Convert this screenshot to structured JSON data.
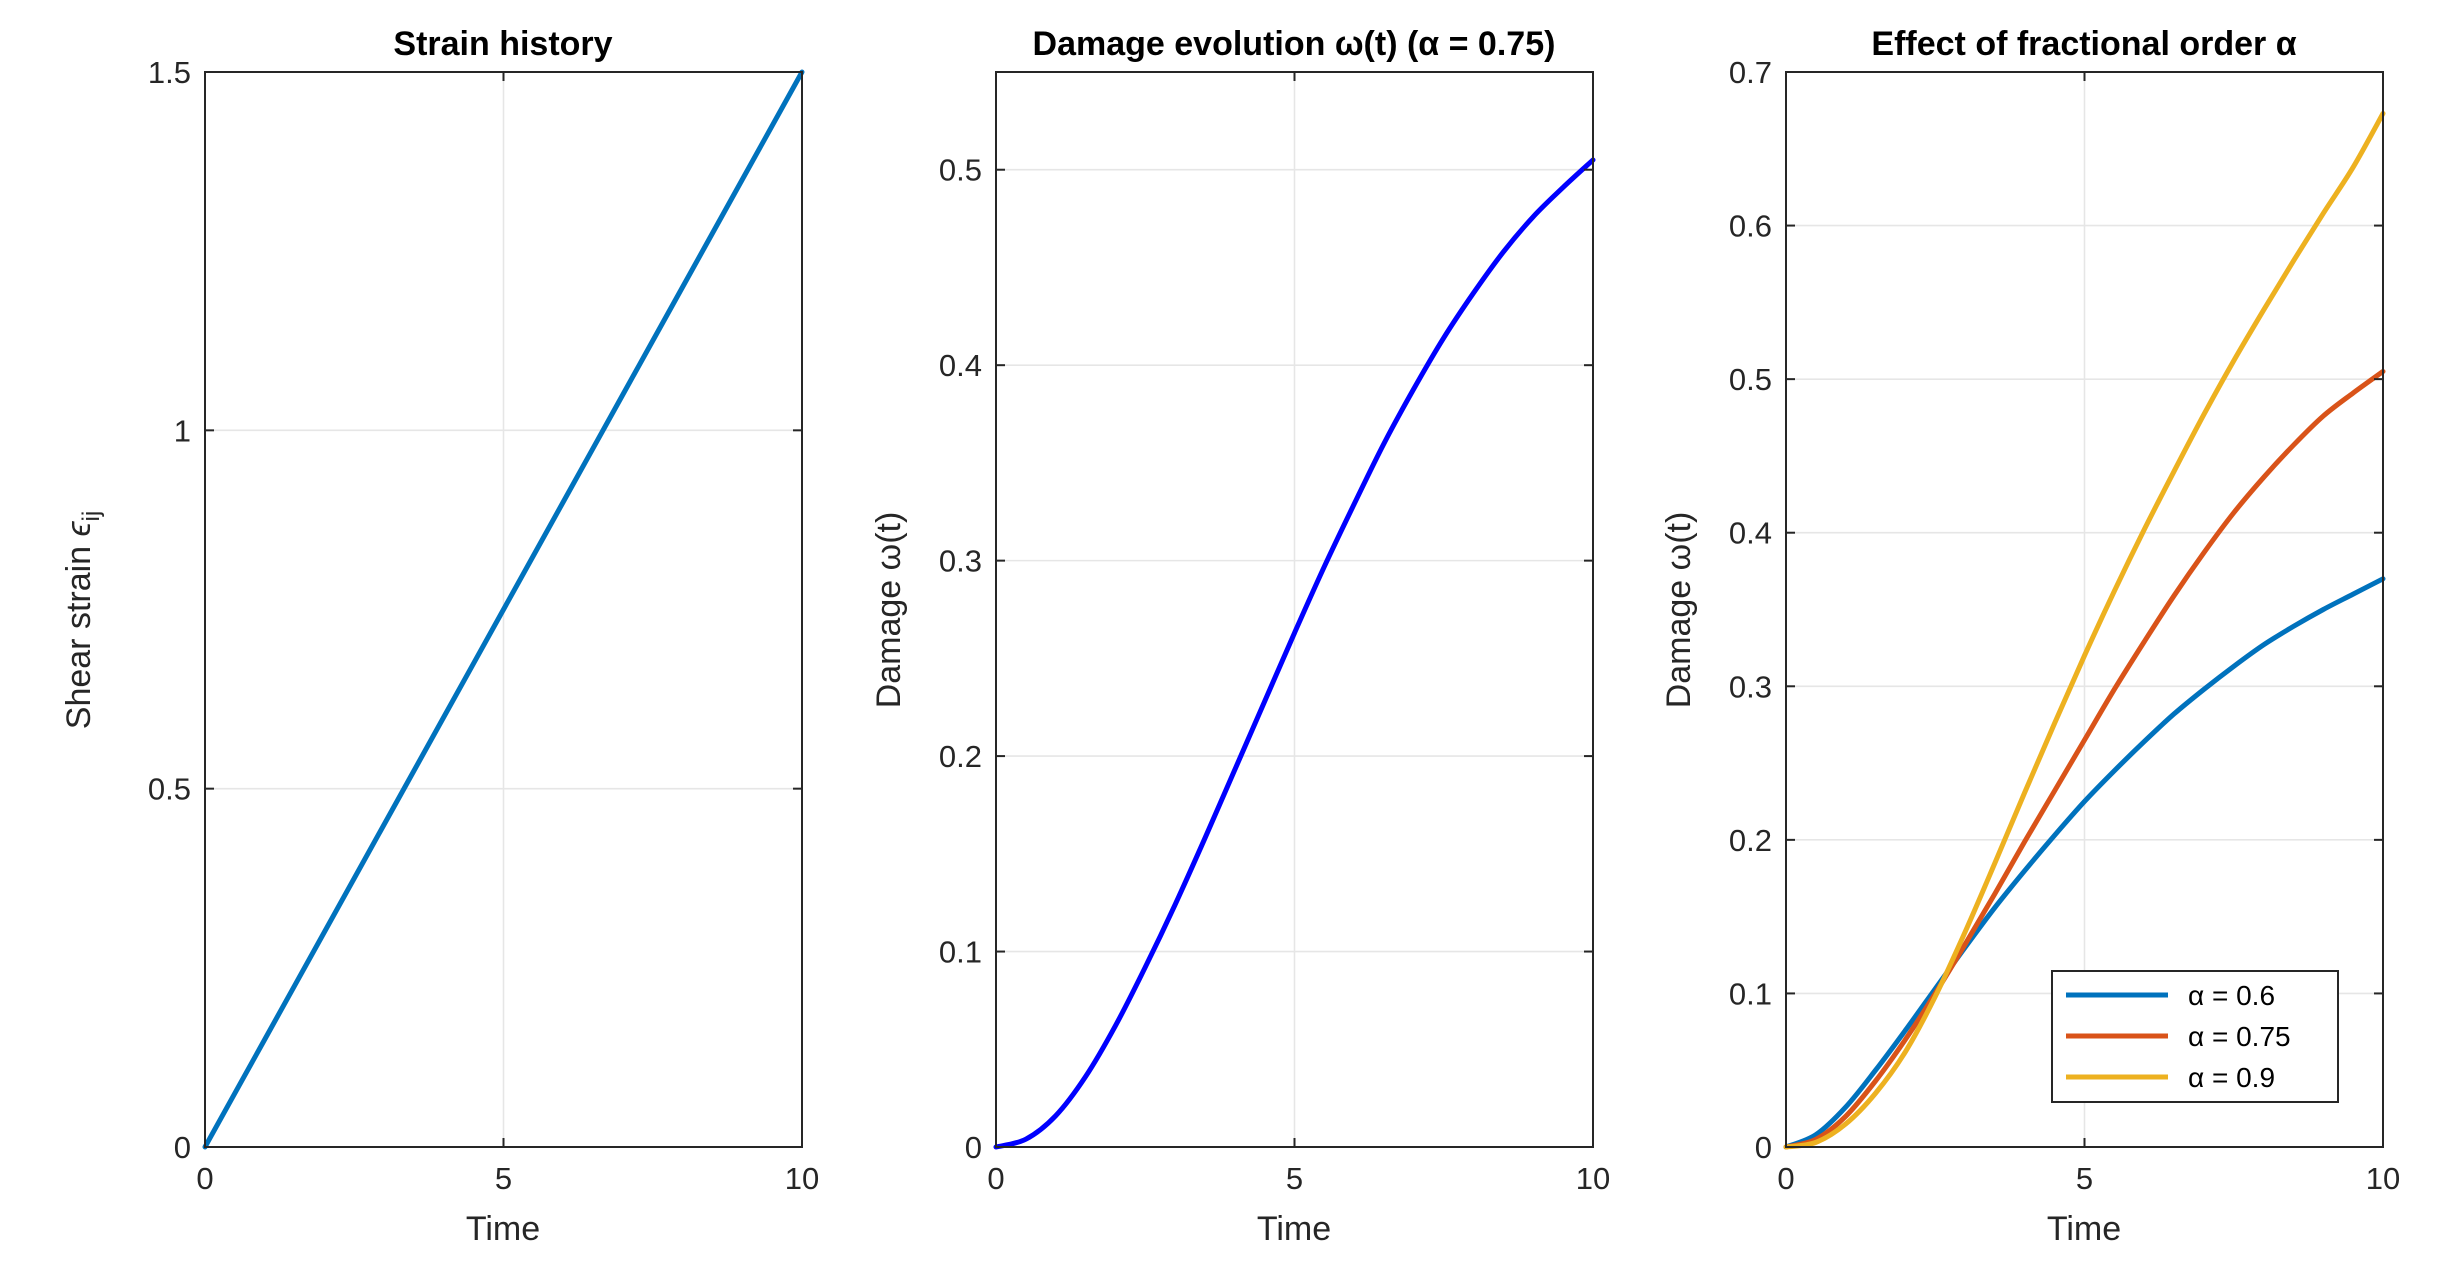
{
  "chart_data": [
    {
      "type": "line",
      "title": "Strain history",
      "xlabel": "Time",
      "ylabel": "Shear strain ϵij",
      "xlim": [
        0,
        10
      ],
      "ylim": [
        0,
        1.5
      ],
      "xticks": [
        0,
        5,
        10
      ],
      "xtick_labels": [
        "0",
        "5",
        "10"
      ],
      "yticks": [
        0,
        0.5,
        1,
        1.5
      ],
      "ytick_labels": [
        "0",
        "0.5",
        "1",
        "1.5"
      ],
      "grid": true,
      "series": [
        {
          "name": "strain",
          "color": "#0072BD",
          "x": [
            0,
            1,
            2,
            3,
            4,
            5,
            6,
            7,
            8,
            9,
            10
          ],
          "y": [
            0,
            0.15,
            0.3,
            0.45,
            0.6,
            0.75,
            0.9,
            1.05,
            1.2,
            1.35,
            1.5
          ]
        }
      ]
    },
    {
      "type": "line",
      "title": "Damage evolution ω(t) (α = 0.75)",
      "xlabel": "Time",
      "ylabel": "Damage ω(t)",
      "xlim": [
        0,
        10
      ],
      "ylim": [
        0,
        0.55
      ],
      "xticks": [
        0,
        5,
        10
      ],
      "xtick_labels": [
        "0",
        "5",
        "10"
      ],
      "yticks": [
        0,
        0.1,
        0.2,
        0.3,
        0.4,
        0.5
      ],
      "ytick_labels": [
        "0",
        "0.1",
        "0.2",
        "0.3",
        "0.4",
        "0.5"
      ],
      "grid": true,
      "series": [
        {
          "name": "α = 0.75",
          "color": "#0000FF",
          "x": [
            0,
            0.5,
            1,
            1.5,
            2,
            2.5,
            3,
            3.5,
            4,
            4.5,
            5,
            5.5,
            6,
            6.5,
            7,
            7.5,
            8,
            8.5,
            9,
            9.5,
            10
          ],
          "y": [
            0,
            0.004,
            0.016,
            0.036,
            0.062,
            0.092,
            0.124,
            0.158,
            0.193,
            0.228,
            0.263,
            0.297,
            0.329,
            0.36,
            0.388,
            0.414,
            0.437,
            0.458,
            0.476,
            0.491,
            0.505
          ]
        }
      ]
    },
    {
      "type": "line",
      "title": "Effect of fractional order α",
      "xlabel": "Time",
      "ylabel": "Damage ω(t)",
      "xlim": [
        0,
        10
      ],
      "ylim": [
        0,
        0.7
      ],
      "xticks": [
        0,
        5,
        10
      ],
      "xtick_labels": [
        "0",
        "5",
        "10"
      ],
      "yticks": [
        0,
        0.1,
        0.2,
        0.3,
        0.4,
        0.5,
        0.6,
        0.7
      ],
      "ytick_labels": [
        "0",
        "0.1",
        "0.2",
        "0.3",
        "0.4",
        "0.5",
        "0.6",
        "0.7"
      ],
      "grid": true,
      "legend_position": "bottom-right",
      "series": [
        {
          "name": "α = 0.6",
          "color": "#0072BD",
          "x": [
            0,
            0.5,
            1,
            1.5,
            2,
            2.5,
            3,
            3.5,
            4,
            4.5,
            5,
            5.5,
            6,
            6.5,
            7,
            7.5,
            8,
            8.5,
            9,
            9.5,
            10
          ],
          "y": [
            0,
            0.008,
            0.026,
            0.05,
            0.076,
            0.103,
            0.13,
            0.156,
            0.18,
            0.203,
            0.225,
            0.245,
            0.264,
            0.282,
            0.298,
            0.313,
            0.327,
            0.339,
            0.35,
            0.36,
            0.37
          ]
        },
        {
          "name": "α = 0.75",
          "color": "#D95319",
          "x": [
            0,
            0.5,
            1,
            1.5,
            2,
            2.5,
            3,
            3.5,
            4,
            4.5,
            5,
            5.5,
            6,
            6.5,
            7,
            7.5,
            8,
            8.5,
            9,
            9.5,
            10
          ],
          "y": [
            0,
            0.005,
            0.02,
            0.043,
            0.07,
            0.1,
            0.132,
            0.165,
            0.199,
            0.232,
            0.265,
            0.298,
            0.329,
            0.359,
            0.387,
            0.413,
            0.436,
            0.457,
            0.476,
            0.491,
            0.505
          ]
        },
        {
          "name": "α = 0.9",
          "color": "#EDB120",
          "x": [
            0,
            0.5,
            1,
            1.5,
            2,
            2.5,
            3,
            3.5,
            4,
            4.5,
            5,
            5.5,
            6,
            6.5,
            7,
            7.5,
            8,
            8.5,
            9,
            9.5,
            10
          ],
          "y": [
            0,
            0.003,
            0.015,
            0.035,
            0.062,
            0.098,
            0.14,
            0.185,
            0.231,
            0.276,
            0.32,
            0.362,
            0.402,
            0.44,
            0.477,
            0.512,
            0.545,
            0.577,
            0.608,
            0.638,
            0.673
          ]
        }
      ]
    }
  ]
}
